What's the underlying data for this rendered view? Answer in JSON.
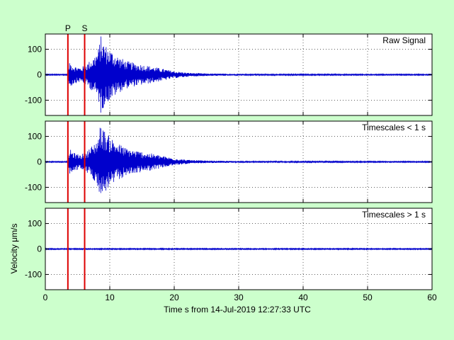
{
  "figure": {
    "background": "#ccffcc",
    "xlabel": "Time s from 14-Jul-2019 12:27:33 UTC",
    "ylabel": "Velocity μm/s"
  },
  "chart_data": [
    {
      "type": "line",
      "title": "Raw Signal",
      "xlim": [
        0,
        60
      ],
      "ylim": [
        -160,
        160
      ],
      "x_ticks": [
        0,
        10,
        20,
        30,
        40,
        50,
        60
      ],
      "y_ticks": [
        -100,
        0,
        100
      ],
      "grid": true,
      "series_color": "#0000cc",
      "markers": [
        {
          "label": "P",
          "x": 3.5
        },
        {
          "label": "S",
          "x": 6.1
        }
      ],
      "marker_color": "#dd0000",
      "envelope": {
        "x": [
          0,
          3.4,
          3.8,
          4.5,
          5.5,
          6.5,
          7.5,
          8.2,
          8.6,
          9.0,
          9.6,
          10.5,
          11.5,
          12.5,
          14,
          15.5,
          17,
          18.5,
          20,
          22,
          25,
          28,
          32,
          40,
          50,
          60
        ],
        "amp": [
          2,
          2,
          50,
          35,
          28,
          45,
          70,
          100,
          155,
          130,
          110,
          90,
          70,
          55,
          45,
          38,
          30,
          22,
          14,
          8,
          5,
          4,
          3,
          2.5,
          2,
          2
        ]
      }
    },
    {
      "type": "line",
      "title": "Timescales < 1 s",
      "xlim": [
        0,
        60
      ],
      "ylim": [
        -160,
        160
      ],
      "x_ticks": [
        0,
        10,
        20,
        30,
        40,
        50,
        60
      ],
      "y_ticks": [
        -100,
        0,
        100
      ],
      "grid": true,
      "series_color": "#0000cc",
      "markers": [
        {
          "label": "P",
          "x": 3.5
        },
        {
          "label": "S",
          "x": 6.1
        }
      ],
      "marker_color": "#dd0000",
      "envelope": {
        "x": [
          0,
          3.4,
          3.8,
          4.5,
          5.5,
          6.5,
          7.5,
          8.2,
          8.6,
          9.0,
          9.6,
          10.5,
          11.5,
          12.5,
          14,
          15.5,
          17,
          18.5,
          20,
          22,
          25,
          28,
          32,
          40,
          50,
          60
        ],
        "amp": [
          2,
          2,
          50,
          35,
          28,
          45,
          70,
          100,
          155,
          130,
          110,
          90,
          70,
          55,
          45,
          38,
          30,
          22,
          14,
          8,
          5,
          4,
          3,
          2.5,
          2,
          2
        ]
      }
    },
    {
      "type": "line",
      "title": "Timescales > 1 s",
      "xlim": [
        0,
        60
      ],
      "ylim": [
        -160,
        160
      ],
      "x_ticks": [
        0,
        10,
        20,
        30,
        40,
        50,
        60
      ],
      "y_ticks": [
        -100,
        0,
        100
      ],
      "grid": true,
      "series_color": "#0000cc",
      "markers": [
        {
          "label": "P",
          "x": 3.5
        },
        {
          "label": "S",
          "x": 6.1
        }
      ],
      "marker_color": "#dd0000",
      "envelope": {
        "x": [
          0,
          60
        ],
        "amp": [
          2,
          2
        ]
      }
    }
  ]
}
